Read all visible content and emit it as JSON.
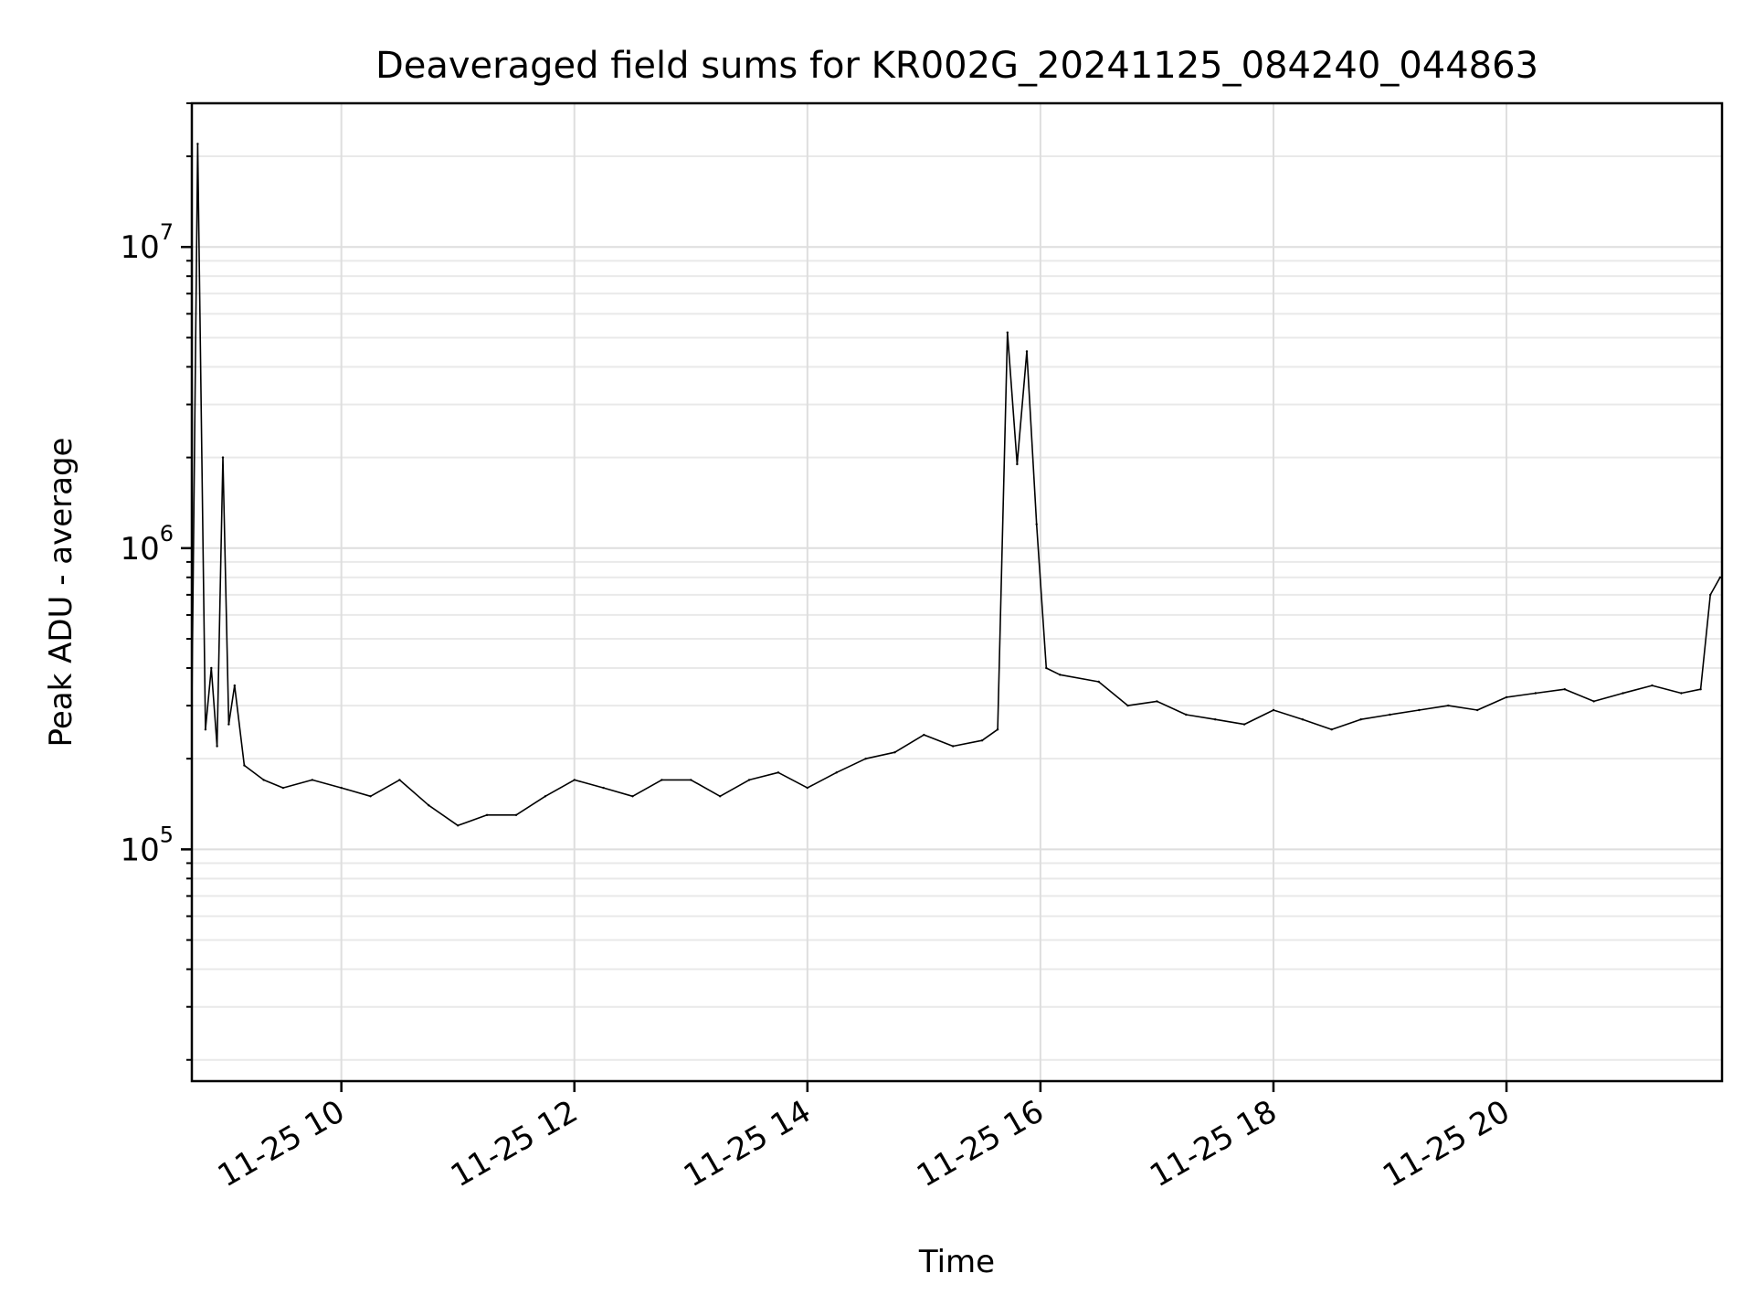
{
  "chart_data": {
    "type": "line",
    "title": "Deaveraged field sums for KR002G_20241125_084240_044863",
    "xlabel": "Time",
    "ylabel": "Peak ADU - average",
    "y_scale": "log",
    "ylim": [
      17000,
      30000000
    ],
    "xlim": [
      "11-25 08:43",
      "11-25 21:51"
    ],
    "grid": true,
    "line_color": "#000000",
    "x_ticks": [
      {
        "time": "11-25 10:00",
        "label": "11-25 10"
      },
      {
        "time": "11-25 12:00",
        "label": "11-25 12"
      },
      {
        "time": "11-25 14:00",
        "label": "11-25 14"
      },
      {
        "time": "11-25 16:00",
        "label": "11-25 16"
      },
      {
        "time": "11-25 18:00",
        "label": "11-25 18"
      },
      {
        "time": "11-25 20:00",
        "label": "11-25 20"
      }
    ],
    "y_ticks": [
      {
        "value": 100000,
        "base": "10",
        "exp": "5"
      },
      {
        "value": 1000000,
        "base": "10",
        "exp": "6"
      },
      {
        "value": 10000000,
        "base": "10",
        "exp": "7"
      }
    ],
    "series": [
      {
        "x": [
          "11-25 08:43",
          "11-25 08:46",
          "11-25 08:50",
          "11-25 08:53",
          "11-25 08:56",
          "11-25 08:59",
          "11-25 09:02",
          "11-25 09:05",
          "11-25 09:10",
          "11-25 09:20",
          "11-25 09:30",
          "11-25 09:45",
          "11-25 10:00",
          "11-25 10:15",
          "11-25 10:30",
          "11-25 10:45",
          "11-25 11:00",
          "11-25 11:15",
          "11-25 11:30",
          "11-25 11:45",
          "11-25 12:00",
          "11-25 12:15",
          "11-25 12:30",
          "11-25 12:45",
          "11-25 13:00",
          "11-25 13:15",
          "11-25 13:30",
          "11-25 13:45",
          "11-25 14:00",
          "11-25 14:15",
          "11-25 14:30",
          "11-25 14:45",
          "11-25 15:00",
          "11-25 15:15",
          "11-25 15:30",
          "11-25 15:38",
          "11-25 15:43",
          "11-25 15:48",
          "11-25 15:53",
          "11-25 15:58",
          "11-25 16:03",
          "11-25 16:10",
          "11-25 16:30",
          "11-25 16:45",
          "11-25 17:00",
          "11-25 17:15",
          "11-25 17:30",
          "11-25 17:45",
          "11-25 18:00",
          "11-25 18:15",
          "11-25 18:30",
          "11-25 18:45",
          "11-25 19:00",
          "11-25 19:15",
          "11-25 19:30",
          "11-25 19:45",
          "11-25 20:00",
          "11-25 20:15",
          "11-25 20:30",
          "11-25 20:45",
          "11-25 21:00",
          "11-25 21:15",
          "11-25 21:30",
          "11-25 21:40",
          "11-25 21:45",
          "11-25 21:50"
        ],
        "y": [
          300000,
          22000000,
          250000,
          400000,
          220000,
          2000000,
          260000,
          350000,
          190000,
          170000,
          160000,
          170000,
          160000,
          150000,
          170000,
          140000,
          120000,
          130000,
          130000,
          150000,
          170000,
          160000,
          150000,
          170000,
          170000,
          150000,
          170000,
          180000,
          160000,
          180000,
          200000,
          210000,
          240000,
          220000,
          230000,
          250000,
          5200000,
          1900000,
          4500000,
          1200000,
          400000,
          380000,
          360000,
          300000,
          310000,
          280000,
          270000,
          260000,
          290000,
          270000,
          250000,
          270000,
          280000,
          290000,
          300000,
          290000,
          320000,
          330000,
          340000,
          310000,
          330000,
          350000,
          330000,
          340000,
          700000,
          800000
        ]
      }
    ]
  }
}
